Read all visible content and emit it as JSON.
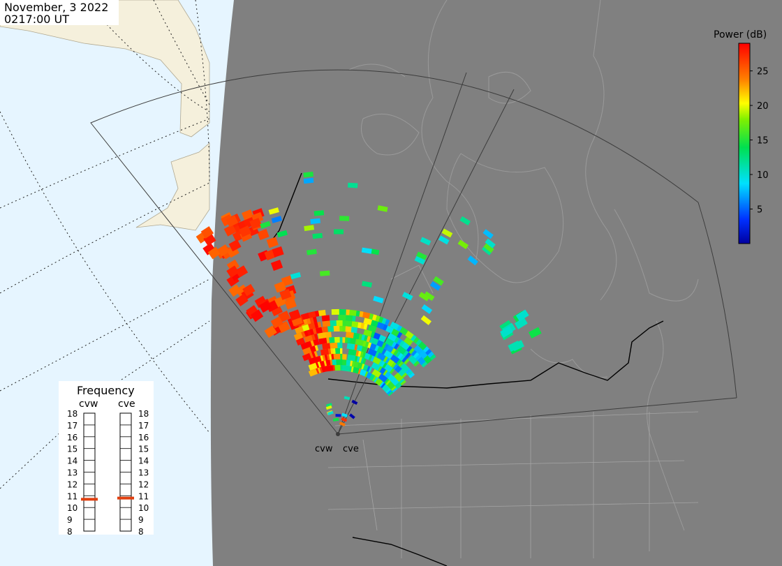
{
  "header": {
    "date": "November, 3 2022",
    "time": "0217:00 UT"
  },
  "colorbar": {
    "title": "Power (dB)",
    "ticks": [
      "25",
      "20",
      "15",
      "10",
      "5"
    ],
    "min_db": 0,
    "max_db": 29
  },
  "frequency_panel": {
    "title": "Frequency",
    "radars": [
      {
        "name": "cvw",
        "frequency_mhz": 10.7
      },
      {
        "name": "cve",
        "frequency_mhz": 10.8
      }
    ],
    "scale_labels": [
      "18",
      "17",
      "16",
      "15",
      "14",
      "13",
      "12",
      "11",
      "10",
      "9",
      "8"
    ],
    "marker_color": "#e04010"
  },
  "sites": [
    {
      "label": "cvw"
    },
    {
      "label": "cve"
    }
  ],
  "colors": {
    "night_shade": "#808080",
    "ocean_day": "#e6f5ff",
    "land_day": "#f5f0dc",
    "coastline": "#9a9a9a",
    "fov_outline": "#3c3c3c",
    "border": "#000000"
  }
}
